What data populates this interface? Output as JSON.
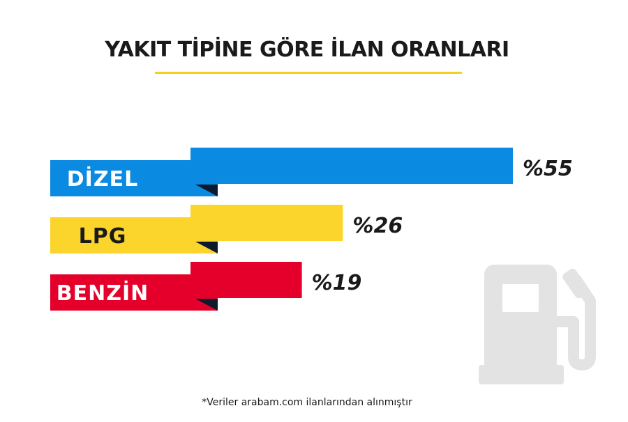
{
  "colors": {
    "underline": "#f5cf1f",
    "icon": "#e3e3e3",
    "fold": "#0d1a2e"
  },
  "icons": {
    "fuel": "fuel-pump-icon"
  },
  "footnote": "*Veriler arabam.com ilanlarından alınmıştır",
  "chart_data": {
    "type": "bar",
    "orientation": "horizontal",
    "title": "YAKIT TİPİNE GÖRE İLAN ORANLARI",
    "categories": [
      "DİZEL",
      "LPG",
      "BENZİN"
    ],
    "values": [
      55,
      26,
      19
    ],
    "value_labels": [
      "%55",
      "%26",
      "%19"
    ],
    "unit": "%",
    "bar_colors": [
      "#0a8ae0",
      "#fbd52c",
      "#e4002b"
    ],
    "label_colors": [
      "#ffffff",
      "#1a1a1a",
      "#ffffff"
    ],
    "grid": false,
    "legend": "none"
  }
}
